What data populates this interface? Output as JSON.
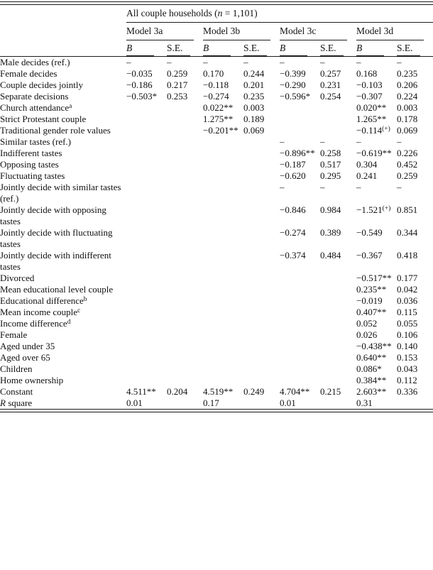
{
  "header": {
    "group_pre": "All couple households (",
    "group_n": "n",
    "group_post": " = 1,101)",
    "models": [
      "Model 3a",
      "Model 3b",
      "Model 3c",
      "Model 3d"
    ],
    "b_label": "B",
    "se_label": "S.E."
  },
  "colors": {
    "text": "#111111",
    "rule": "#1c1c1c",
    "background": "#ffffff"
  },
  "table": {
    "rows": [
      {
        "label": "Male decides (ref.)",
        "indent": 0,
        "cells": [
          "–",
          "–",
          "–",
          "–",
          "–",
          "–",
          "–",
          "–"
        ]
      },
      {
        "label": "Female decides",
        "indent": 1,
        "cells": [
          "−0.035",
          "0.259",
          "0.170",
          "0.244",
          "−0.399",
          "0.257",
          "0.168",
          "0.235"
        ]
      },
      {
        "label": "Couple decides jointly",
        "indent": 1,
        "cells": [
          "−0.186",
          "0.217",
          "−0.118",
          "0.201",
          "−0.290",
          "0.231",
          "−0.103",
          "0.206"
        ]
      },
      {
        "label": "Separate decisions",
        "indent": 1,
        "cells": [
          "−0.503*",
          "0.253",
          "−0.274",
          "0.235",
          "−0.596*",
          "0.254",
          "−0.307",
          "0.224"
        ]
      },
      {
        "label": "Church attendance",
        "sup": "a",
        "indent": 0,
        "cells": [
          "",
          "",
          "0.022**",
          "0.003",
          "",
          "",
          "0.020**",
          "0.003"
        ]
      },
      {
        "label": "Strict Protestant couple",
        "indent": 0,
        "cells": [
          "",
          "",
          "1.275**",
          "0.189",
          "",
          "",
          "1.265**",
          "0.178"
        ]
      },
      {
        "label": "Traditional gender role values",
        "indent": 0,
        "cells": [
          "",
          "",
          "−0.201**",
          "0.069",
          "",
          "",
          "−0.114^(+)",
          "0.069"
        ]
      },
      {
        "label": "Similar tastes (ref.)",
        "indent": 0,
        "cells": [
          "",
          "",
          "",
          "",
          "–",
          "–",
          "–",
          "–"
        ]
      },
      {
        "label": "Indifferent tastes",
        "indent": 1,
        "cells": [
          "",
          "",
          "",
          "",
          "−0.896**",
          "0.258",
          "−0.619**",
          "0.226"
        ]
      },
      {
        "label": "Opposing tastes",
        "indent": 1,
        "cells": [
          "",
          "",
          "",
          "",
          "−0.187",
          "0.517",
          "0.304",
          "0.452"
        ]
      },
      {
        "label": "Fluctuating tastes",
        "indent": 1,
        "cells": [
          "",
          "",
          "",
          "",
          "−0.620",
          "0.295",
          "0.241",
          "0.259"
        ]
      },
      {
        "label": "Jointly decide with similar tastes (ref.)",
        "indent": 2,
        "cells": [
          "",
          "",
          "",
          "",
          "–",
          "–",
          "–",
          "–"
        ]
      },
      {
        "label": "Jointly decide with opposing tastes",
        "indent": 2,
        "cells": [
          "",
          "",
          "",
          "",
          "−0.846",
          "0.984",
          "−1.521^(+)",
          "0.851"
        ]
      },
      {
        "label": "Jointly decide with fluctuating tastes",
        "indent": 2,
        "cells": [
          "",
          "",
          "",
          "",
          "−0.274",
          "0.389",
          "−0.549",
          "0.344"
        ]
      },
      {
        "label": "Jointly decide with indifferent tastes",
        "indent": 2,
        "cells": [
          "",
          "",
          "",
          "",
          "−0.374",
          "0.484",
          "−0.367",
          "0.418"
        ]
      },
      {
        "label": "Divorced",
        "indent": 0,
        "cells": [
          "",
          "",
          "",
          "",
          "",
          "",
          "−0.517**",
          "0.177"
        ]
      },
      {
        "label": "Mean educational level couple",
        "indent": 0,
        "cells": [
          "",
          "",
          "",
          "",
          "",
          "",
          "0.235**",
          "0.042"
        ]
      },
      {
        "label": "Educational difference",
        "sup": "b",
        "indent": 0,
        "cells": [
          "",
          "",
          "",
          "",
          "",
          "",
          "−0.019",
          "0.036"
        ]
      },
      {
        "label": "Mean income couple",
        "sup": "c",
        "indent": 0,
        "cells": [
          "",
          "",
          "",
          "",
          "",
          "",
          "0.407**",
          "0.115"
        ]
      },
      {
        "label": "Income difference",
        "sup": "d",
        "indent": 0,
        "cells": [
          "",
          "",
          "",
          "",
          "",
          "",
          "0.052",
          "0.055"
        ]
      },
      {
        "label": "Female",
        "indent": 0,
        "cells": [
          "",
          "",
          "",
          "",
          "",
          "",
          "0.026",
          "0.106"
        ]
      },
      {
        "label": "Aged under 35",
        "indent": 0,
        "cells": [
          "",
          "",
          "",
          "",
          "",
          "",
          "−0.438**",
          "0.140"
        ]
      },
      {
        "label": "Aged over 65",
        "indent": 0,
        "cells": [
          "",
          "",
          "",
          "",
          "",
          "",
          "0.640**",
          "0.153"
        ]
      },
      {
        "label": "Children",
        "indent": 0,
        "cells": [
          "",
          "",
          "",
          "",
          "",
          "",
          "0.086*",
          "0.043"
        ]
      },
      {
        "label": "Home ownership",
        "indent": 0,
        "cells": [
          "",
          "",
          "",
          "",
          "",
          "",
          "0.384**",
          "0.112"
        ]
      },
      {
        "label": "Constant",
        "indent": 0,
        "cells": [
          "4.511**",
          "0.204",
          "4.519**",
          "0.249",
          "4.704**",
          "0.215",
          "2.603**",
          "0.336"
        ]
      },
      {
        "parts": [
          {
            "t": "R",
            "i": true
          },
          {
            "t": " square",
            "i": false
          }
        ],
        "indent": 0,
        "cells": [
          "0.01",
          "",
          "0.17",
          "",
          "0.01",
          "",
          "0.31",
          ""
        ]
      }
    ]
  }
}
